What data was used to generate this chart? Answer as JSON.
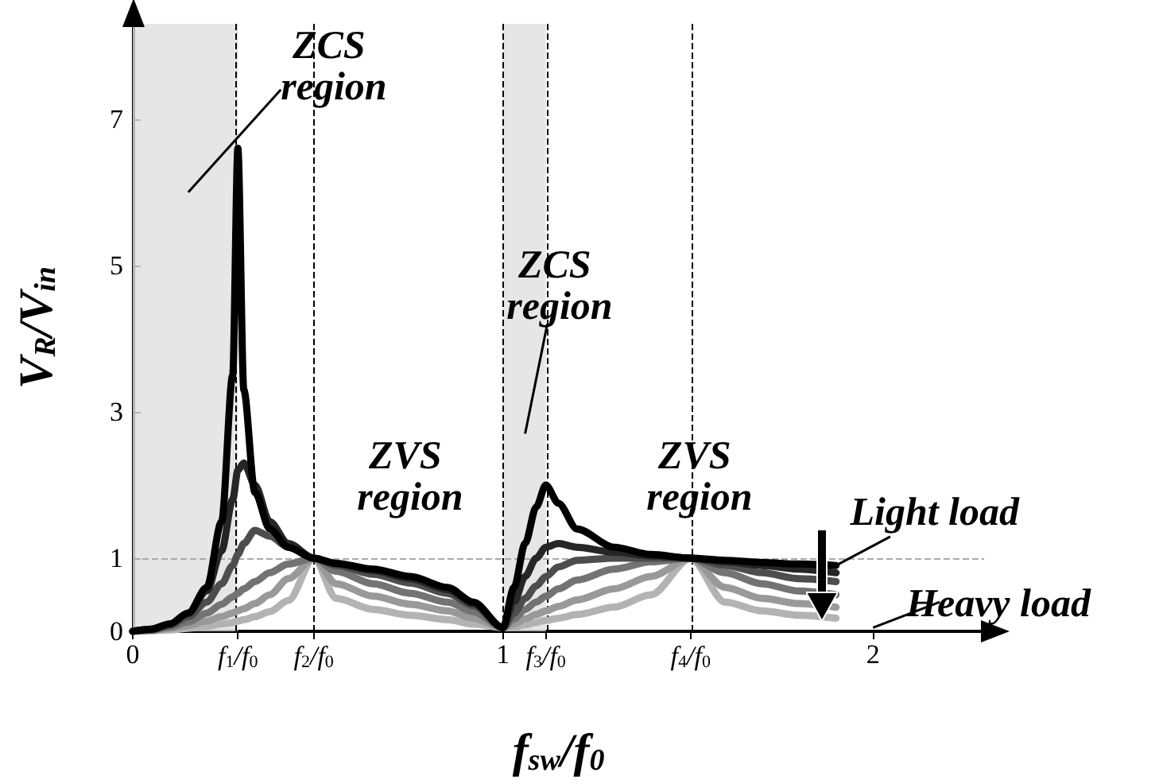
{
  "chart_data": {
    "type": "line",
    "xlabel": "f$_{sw}$/f$_{0}$",
    "ylabel": "V$_{R}$/V$_{in}$",
    "x": [
      0,
      0.05,
      0.1,
      0.15,
      0.2,
      0.24,
      0.27,
      0.284,
      0.3,
      0.33,
      0.37,
      0.42,
      0.489,
      0.55,
      0.65,
      0.75,
      0.85,
      0.92,
      1.0,
      1.03,
      1.06,
      1.09,
      1.116,
      1.15,
      1.2,
      1.3,
      1.4,
      1.507,
      1.6,
      1.7,
      1.8,
      1.9
    ],
    "series": [
      {
        "color": "#000000",
        "values": [
          0,
          0.03,
          0.1,
          0.25,
          0.6,
          1.5,
          3.5,
          6.6,
          3.3,
          1.9,
          1.4,
          1.15,
          1.0,
          0.93,
          0.85,
          0.75,
          0.6,
          0.4,
          0.05,
          0.6,
          1.2,
          1.7,
          2.0,
          1.75,
          1.4,
          1.15,
          1.05,
          1.0,
          0.97,
          0.94,
          0.92,
          0.9
        ]
      },
      {
        "color": "#262626",
        "values": [
          0,
          0.03,
          0.1,
          0.25,
          0.55,
          1.1,
          1.8,
          2.2,
          2.3,
          2.0,
          1.5,
          1.2,
          1.0,
          0.92,
          0.83,
          0.72,
          0.57,
          0.38,
          0.05,
          0.4,
          0.75,
          1.0,
          1.15,
          1.2,
          1.15,
          1.08,
          1.03,
          1.0,
          0.95,
          0.9,
          0.85,
          0.8
        ]
      },
      {
        "color": "#4d4d4d",
        "values": [
          0,
          0.02,
          0.08,
          0.2,
          0.4,
          0.65,
          0.9,
          1.05,
          1.2,
          1.38,
          1.3,
          1.15,
          1.0,
          0.9,
          0.78,
          0.66,
          0.52,
          0.35,
          0.05,
          0.25,
          0.45,
          0.62,
          0.75,
          0.88,
          0.97,
          1.0,
          1.0,
          1.0,
          0.9,
          0.8,
          0.72,
          0.68
        ]
      },
      {
        "color": "#737373",
        "values": [
          0,
          0.02,
          0.06,
          0.13,
          0.25,
          0.37,
          0.47,
          0.52,
          0.58,
          0.68,
          0.8,
          0.92,
          1.0,
          0.82,
          0.65,
          0.52,
          0.4,
          0.27,
          0.05,
          0.17,
          0.3,
          0.4,
          0.48,
          0.58,
          0.7,
          0.85,
          0.95,
          1.0,
          0.8,
          0.65,
          0.55,
          0.5
        ]
      },
      {
        "color": "#999999",
        "values": [
          0,
          0.01,
          0.04,
          0.08,
          0.14,
          0.2,
          0.25,
          0.28,
          0.31,
          0.38,
          0.5,
          0.72,
          1.0,
          0.65,
          0.48,
          0.37,
          0.28,
          0.18,
          0.05,
          0.1,
          0.17,
          0.23,
          0.28,
          0.34,
          0.43,
          0.58,
          0.75,
          1.0,
          0.6,
          0.45,
          0.38,
          0.33
        ]
      },
      {
        "color": "#b3b3b3",
        "values": [
          0,
          0.01,
          0.02,
          0.04,
          0.07,
          0.1,
          0.12,
          0.14,
          0.16,
          0.2,
          0.27,
          0.42,
          1.0,
          0.45,
          0.3,
          0.22,
          0.16,
          0.1,
          0.05,
          0.06,
          0.09,
          0.12,
          0.15,
          0.18,
          0.23,
          0.33,
          0.5,
          1.0,
          0.4,
          0.28,
          0.22,
          0.18
        ]
      }
    ],
    "xlim": [
      0,
      2.3
    ],
    "ylim": [
      0,
      8.3
    ],
    "xticks": [
      0,
      {
        "value": 0.284,
        "label": "f$_{1}$/f$_{0}$"
      },
      {
        "value": 0.489,
        "label": "f$_{2}$/f$_{0}$"
      },
      1,
      {
        "value": 1.116,
        "label": "f$_{3}$/f$_{0}$"
      },
      {
        "value": 1.507,
        "label": "f$_{4}$/f$_{0}$"
      },
      2
    ],
    "yticks": [
      0,
      1,
      3,
      5,
      7
    ],
    "bands": [
      {
        "axis": "x",
        "from": 0,
        "to": 0.284,
        "color": "#e0e0e0"
      },
      {
        "axis": "x",
        "from": 1,
        "to": 1.116,
        "color": "#e0e0e0"
      }
    ],
    "ref_lines": [
      {
        "axis": "x",
        "value": 0.284,
        "color": "#000000",
        "line_style": "dashed"
      },
      {
        "axis": "x",
        "value": 0.489,
        "color": "#000000",
        "line_style": "dashed"
      },
      {
        "axis": "x",
        "value": 1,
        "color": "#000000",
        "line_style": "dashed"
      },
      {
        "axis": "x",
        "value": 1.116,
        "color": "#000000",
        "line_style": "dashed"
      },
      {
        "axis": "x",
        "value": 1.507,
        "color": "#000000",
        "line_style": "dashed"
      },
      {
        "axis": "y",
        "value": 1,
        "color": "#aaaaaa",
        "line_style": "dashed"
      }
    ],
    "line_style": "solid",
    "annotations": [
      "ZCS region",
      "ZVS region",
      "ZCS region",
      "ZVS region",
      {
        "text": "Light load",
        "x": 1.9,
        "y": 0.9
      },
      "Heavy load"
    ]
  }
}
